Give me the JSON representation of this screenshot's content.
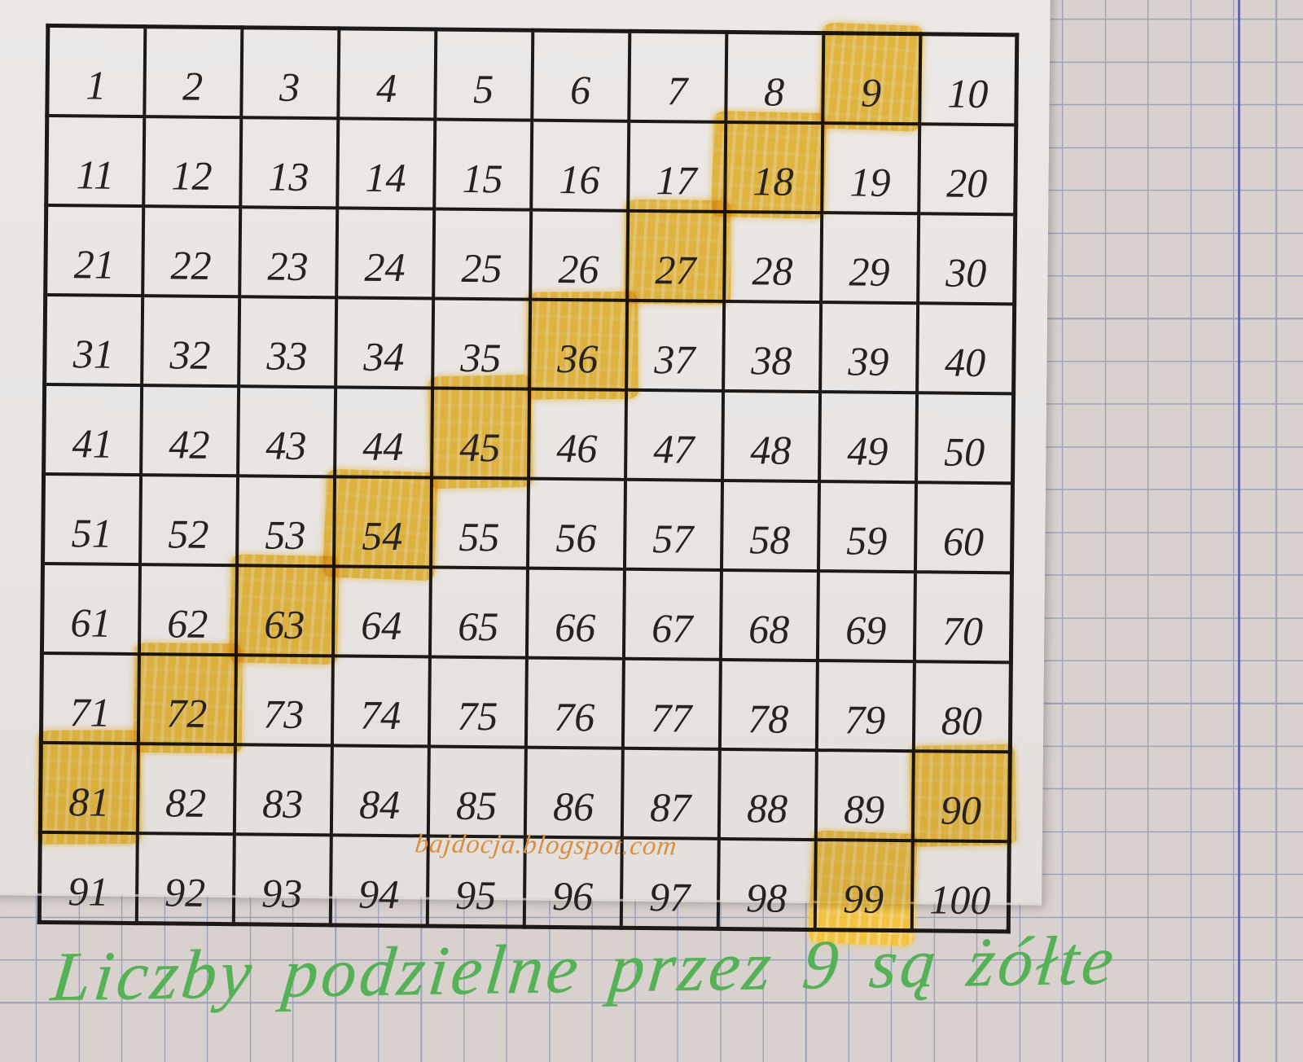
{
  "table": {
    "rows": [
      [
        1,
        2,
        3,
        4,
        5,
        6,
        7,
        8,
        9,
        10
      ],
      [
        11,
        12,
        13,
        14,
        15,
        16,
        17,
        18,
        19,
        20
      ],
      [
        21,
        22,
        23,
        24,
        25,
        26,
        27,
        28,
        29,
        30
      ],
      [
        31,
        32,
        33,
        34,
        35,
        36,
        37,
        38,
        39,
        40
      ],
      [
        41,
        42,
        43,
        44,
        45,
        46,
        47,
        48,
        49,
        50
      ],
      [
        51,
        52,
        53,
        54,
        55,
        56,
        57,
        58,
        59,
        60
      ],
      [
        61,
        62,
        63,
        64,
        65,
        66,
        67,
        68,
        69,
        70
      ],
      [
        71,
        72,
        73,
        74,
        75,
        76,
        77,
        78,
        79,
        80
      ],
      [
        81,
        82,
        83,
        84,
        85,
        86,
        87,
        88,
        89,
        90
      ],
      [
        91,
        92,
        93,
        94,
        95,
        96,
        97,
        98,
        99,
        100
      ]
    ],
    "highlighted_numbers": [
      9,
      18,
      27,
      36,
      45,
      54,
      63,
      72,
      81,
      90,
      99
    ]
  },
  "watermark": {
    "text": "bajdocja.blogspot.com"
  },
  "caption": {
    "text": "Liczby podzielne przez 9 są żółte"
  },
  "colors": {
    "highlight": "#f4c238",
    "watermark": "#dc8f3e",
    "caption": "#55b156",
    "table_border": "#1c1a18",
    "number_text": "#26221f",
    "sheet": "#e8e5e3",
    "paper": "#d8d1ce",
    "grid_line": "#9aa2bd",
    "margin_line": "#55589b"
  }
}
